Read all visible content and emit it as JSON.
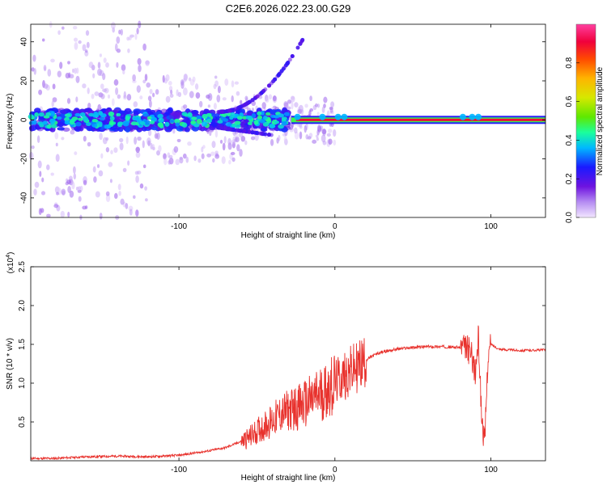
{
  "chart_data": [
    {
      "type": "heatmap",
      "title": "C2E6.2026.022.23.00.G29",
      "xlabel": "Height of straight line (km)",
      "ylabel": "Frequency (Hz)",
      "xlim": [
        -195,
        135
      ],
      "ylim": [
        -50,
        49
      ],
      "xticks": [
        -100,
        0,
        100
      ],
      "yticks": [
        -40,
        -20,
        0,
        20,
        40
      ],
      "colorbar": {
        "label": "Normalized spectral amplitude",
        "range": [
          0.0,
          1.0
        ],
        "ticks": [
          "0.0",
          "0.2",
          "0.4",
          "0.6",
          "0.8"
        ],
        "tick_values": [
          0.0,
          0.2,
          0.4,
          0.6,
          0.8
        ]
      },
      "features": {
        "noisy_band_x": [
          -195,
          -30
        ],
        "branch_up_start_x": -40,
        "branch_up_end_x": -10,
        "tone_x": [
          -28,
          135
        ],
        "tone_freq_hz": 0
      }
    },
    {
      "type": "line",
      "xlabel": "Height of straight line (km)",
      "ylabel": "SNR (10 * v/v)",
      "multiplier": "(x10",
      "multiplier_exp": "4",
      "multiplier_close": ")",
      "xlim": [
        -195,
        135
      ],
      "ylim": [
        0,
        2.5
      ],
      "xticks": [
        -100,
        0,
        100
      ],
      "yticks": [
        0.5,
        1.0,
        1.5,
        2.0,
        2.5
      ],
      "ytick_labels": [
        "0.5",
        "1.0",
        "1.5",
        "2.0",
        "2.5"
      ],
      "series": [
        {
          "name": "SNR",
          "color": "#e8322d",
          "x": [
            -195,
            -180,
            -160,
            -140,
            -120,
            -100,
            -90,
            -80,
            -70,
            -60,
            -55,
            -50,
            -45,
            -40,
            -35,
            -30,
            -25,
            -20,
            -15,
            -10,
            -5,
            0,
            5,
            10,
            15,
            20,
            25,
            30,
            40,
            50,
            60,
            70,
            80,
            85,
            88,
            90,
            92,
            94,
            96,
            98,
            100,
            105,
            110,
            120,
            135
          ],
          "values": [
            0.03,
            0.03,
            0.05,
            0.06,
            0.05,
            0.07,
            0.1,
            0.13,
            0.17,
            0.25,
            0.3,
            0.38,
            0.45,
            0.52,
            0.6,
            0.65,
            0.68,
            0.72,
            0.78,
            0.85,
            0.92,
            1.0,
            1.08,
            1.15,
            1.22,
            1.3,
            1.36,
            1.4,
            1.44,
            1.46,
            1.47,
            1.47,
            1.46,
            1.45,
            1.35,
            1.1,
            1.6,
            0.6,
            0.2,
            1.3,
            1.5,
            1.44,
            1.43,
            1.42,
            1.43
          ]
        }
      ]
    }
  ]
}
